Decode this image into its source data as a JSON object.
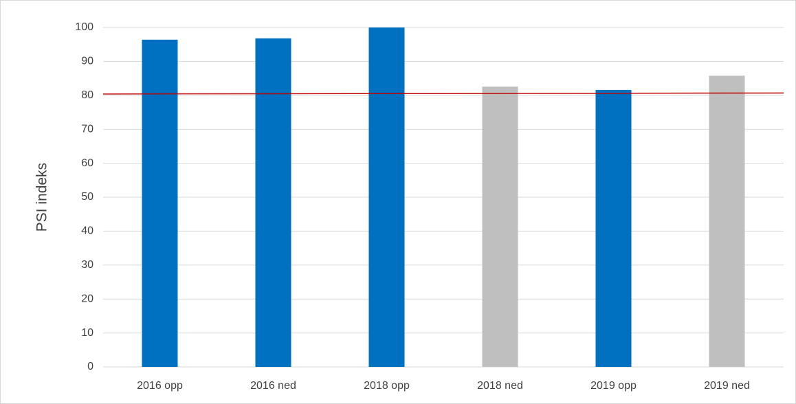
{
  "chart_data": {
    "type": "bar",
    "y_label": "PSI indeks",
    "categories": [
      "2016 opp",
      "2016 ned",
      "2018 opp",
      "2018 ned",
      "2019 opp",
      "2019 ned"
    ],
    "values": [
      96.4,
      96.8,
      100,
      82.6,
      81.6,
      85.8
    ],
    "colors": [
      "#0070c0",
      "#0070c0",
      "#0070c0",
      "#bfbfbf",
      "#0070c0",
      "#bfbfbf"
    ],
    "reference_line": {
      "color": "#c00000",
      "values": [
        80.4,
        80.7
      ]
    },
    "ylim": [
      0,
      100
    ],
    "yticks": [
      0,
      10,
      20,
      30,
      40,
      50,
      60,
      70,
      80,
      90,
      100
    ],
    "grid": true
  }
}
